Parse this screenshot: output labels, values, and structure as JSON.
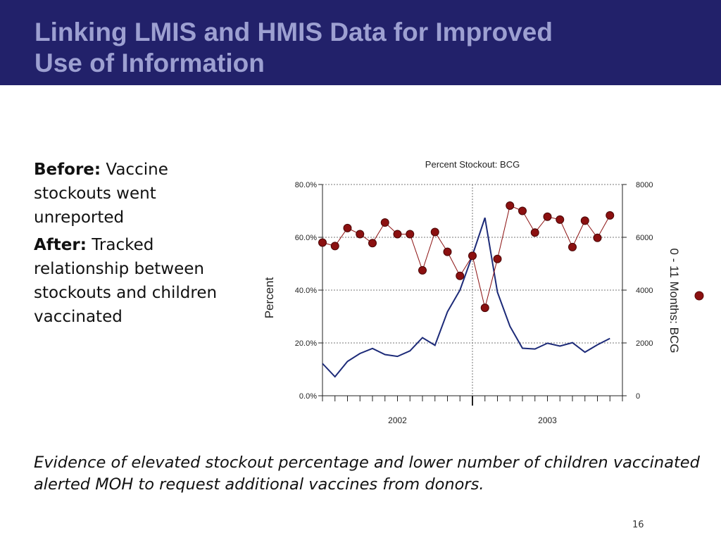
{
  "slide": {
    "title_line1": "Linking LMIS and HMIS Data for Improved",
    "title_line2": "Use of Information",
    "bullets": [
      {
        "label": "Before:",
        "text": "Vaccine stockouts went unreported"
      },
      {
        "label": "After:",
        "text": "Tracked relationship between stockouts and children vaccinated"
      }
    ],
    "caption": "Evidence of elevated stockout percentage and lower number of children vaccinated alerted MOH to request additional vaccines from donors.",
    "page_number": "16"
  },
  "colors": {
    "header_bg": "#22216a",
    "title_text": "#9da0d1",
    "stockout_series": "#8b1010",
    "vaccinated_series": "#1c2a78"
  },
  "chart_data": {
    "type": "line",
    "title": "Percent Stockout: BCG",
    "ylabel": "Percent",
    "y2label": "0 - 11 Months: BCG",
    "ylim": [
      0,
      80
    ],
    "y2lim": [
      0,
      8000
    ],
    "yticks": [
      "0.0%",
      "20.0%",
      "40.0%",
      "60.0%",
      "80.0%"
    ],
    "y2ticks": [
      "0",
      "2000",
      "4000",
      "6000",
      "8000"
    ],
    "year_labels": [
      "2002",
      "2003"
    ],
    "grid": true,
    "series": [
      {
        "axis": "left",
        "marker": "circle",
        "values": [
          58,
          56.7,
          63.5,
          61.2,
          57.8,
          65.6,
          61.2,
          61.2,
          47.5,
          62,
          54.5,
          45.4,
          53,
          33.3,
          51.8,
          72,
          70,
          61.8,
          67.8,
          66.7,
          56.3,
          66.3,
          59.8,
          68.3
        ]
      },
      {
        "axis": "right",
        "marker": "none",
        "values": [
          1220,
          720,
          1300,
          1600,
          1790,
          1560,
          1490,
          1700,
          2200,
          1910,
          3180,
          4000,
          5320,
          6740,
          3920,
          2630,
          1800,
          1770,
          1990,
          1880,
          2010,
          1650,
          1930,
          2170
        ]
      }
    ]
  }
}
